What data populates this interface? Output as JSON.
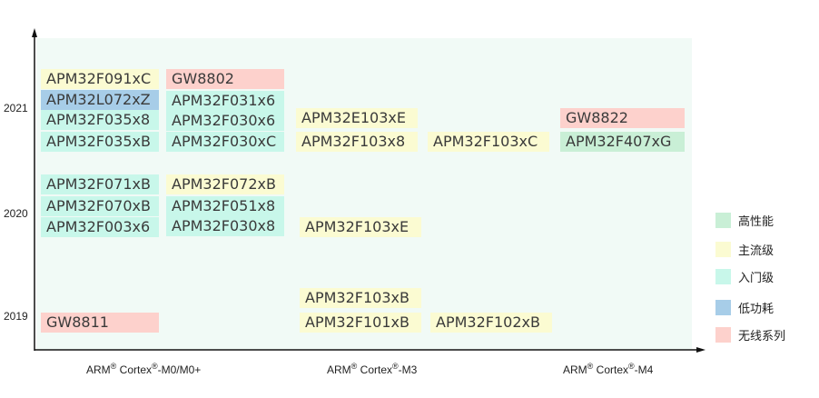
{
  "colors": {
    "high_performance": "#c9efd6",
    "mainstream": "#fbfbd2",
    "entry": "#c8f7ea",
    "low_power": "#a7cde8",
    "wireless": "#fdd1cc"
  },
  "legend": [
    {
      "label": "高性能",
      "color_key": "high_performance"
    },
    {
      "label": "主流级",
      "color_key": "mainstream"
    },
    {
      "label": "入门级",
      "color_key": "entry"
    },
    {
      "label": "低功耗",
      "color_key": "low_power"
    },
    {
      "label": "无线系列",
      "color_key": "wireless"
    }
  ],
  "years": [
    "2021",
    "2020",
    "2019"
  ],
  "categories": [
    {
      "prefix": "ARM",
      "mid": " Cortex",
      "suffix": "-M0/M0+"
    },
    {
      "prefix": "ARM",
      "mid": " Cortex",
      "suffix": "-M3"
    },
    {
      "prefix": "ARM",
      "mid": " Cortex",
      "suffix": "-M4"
    }
  ],
  "registered_mark": "®",
  "products": [
    {
      "name": "APM32F091xC",
      "category": "ARM Cortex-M0/M0+",
      "year": "2021",
      "level": "mainstream"
    },
    {
      "name": "APM32L072xZ",
      "category": "ARM Cortex-M0/M0+",
      "year": "2021",
      "level": "low_power"
    },
    {
      "name": "APM32F035x8",
      "category": "ARM Cortex-M0/M0+",
      "year": "2021",
      "level": "entry"
    },
    {
      "name": "APM32F035xB",
      "category": "ARM Cortex-M0/M0+",
      "year": "2021",
      "level": "entry"
    },
    {
      "name": "GW8802",
      "category": "ARM Cortex-M0/M0+",
      "year": "2021",
      "level": "wireless"
    },
    {
      "name": "APM32F031x6",
      "category": "ARM Cortex-M0/M0+",
      "year": "2021",
      "level": "entry"
    },
    {
      "name": "APM32F030x6",
      "category": "ARM Cortex-M0/M0+",
      "year": "2021",
      "level": "entry"
    },
    {
      "name": "APM32F030xC",
      "category": "ARM Cortex-M0/M0+",
      "year": "2021",
      "level": "entry"
    },
    {
      "name": "APM32F071xB",
      "category": "ARM Cortex-M0/M0+",
      "year": "2020",
      "level": "entry"
    },
    {
      "name": "APM32F070xB",
      "category": "ARM Cortex-M0/M0+",
      "year": "2020",
      "level": "entry"
    },
    {
      "name": "APM32F003x6",
      "category": "ARM Cortex-M0/M0+",
      "year": "2020",
      "level": "entry"
    },
    {
      "name": "APM32F072xB",
      "category": "ARM Cortex-M0/M0+",
      "year": "2020",
      "level": "mainstream"
    },
    {
      "name": "APM32F051x8",
      "category": "ARM Cortex-M0/M0+",
      "year": "2020",
      "level": "entry"
    },
    {
      "name": "APM32F030x8",
      "category": "ARM Cortex-M0/M0+",
      "year": "2020",
      "level": "entry"
    },
    {
      "name": "GW8811",
      "category": "ARM Cortex-M0/M0+",
      "year": "2019",
      "level": "wireless"
    },
    {
      "name": "APM32E103xE",
      "category": "ARM Cortex-M3",
      "year": "2021",
      "level": "mainstream"
    },
    {
      "name": "APM32F103x8",
      "category": "ARM Cortex-M3",
      "year": "2021",
      "level": "mainstream"
    },
    {
      "name": "APM32F103xC",
      "category": "ARM Cortex-M3",
      "year": "2021",
      "level": "mainstream"
    },
    {
      "name": "APM32F103xE",
      "category": "ARM Cortex-M3",
      "year": "2020",
      "level": "mainstream"
    },
    {
      "name": "APM32F103xB",
      "category": "ARM Cortex-M3",
      "year": "2019",
      "level": "mainstream"
    },
    {
      "name": "APM32F101xB",
      "category": "ARM Cortex-M3",
      "year": "2019",
      "level": "mainstream"
    },
    {
      "name": "APM32F102xB",
      "category": "ARM Cortex-M3",
      "year": "2019",
      "level": "mainstream"
    },
    {
      "name": "GW8822",
      "category": "ARM Cortex-M4",
      "year": "2021",
      "level": "wireless"
    },
    {
      "name": "APM32F407xG",
      "category": "ARM Cortex-M4",
      "year": "2021",
      "level": "high_performance"
    }
  ]
}
